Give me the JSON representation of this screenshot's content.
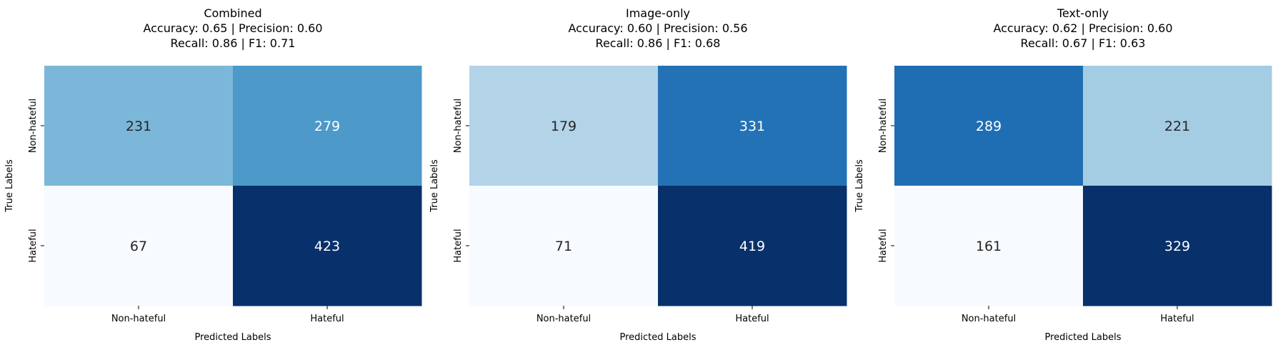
{
  "chart_data": [
    {
      "type": "heatmap",
      "title": "Combined",
      "subtitle_lines": [
        "Accuracy: 0.65 | Precision: 0.60",
        "Recall: 0.86 | F1: 0.71"
      ],
      "xlabel": "Predicted Labels",
      "ylabel": "True Labels",
      "x_categories": [
        "Non-hateful",
        "Hateful"
      ],
      "y_categories": [
        "Non-hateful",
        "Hateful"
      ],
      "values": [
        [
          231,
          279
        ],
        [
          67,
          423
        ]
      ],
      "colormap": "Blues"
    },
    {
      "type": "heatmap",
      "title": "Image-only",
      "subtitle_lines": [
        "Accuracy: 0.60 | Precision: 0.56",
        "Recall: 0.86 | F1: 0.68"
      ],
      "xlabel": "Predicted Labels",
      "ylabel": "True Labels",
      "x_categories": [
        "Non-hateful",
        "Hateful"
      ],
      "y_categories": [
        "Non-hateful",
        "Hateful"
      ],
      "values": [
        [
          179,
          331
        ],
        [
          71,
          419
        ]
      ],
      "colormap": "Blues"
    },
    {
      "type": "heatmap",
      "title": "Text-only",
      "subtitle_lines": [
        "Accuracy: 0.62 | Precision: 0.60",
        "Recall: 0.67 | F1: 0.63"
      ],
      "xlabel": "Predicted Labels",
      "ylabel": "True Labels",
      "x_categories": [
        "Non-hateful",
        "Hateful"
      ],
      "y_categories": [
        "Non-hateful",
        "Hateful"
      ],
      "values": [
        [
          289,
          221
        ],
        [
          161,
          329
        ]
      ],
      "colormap": "Blues"
    }
  ],
  "colors": {
    "blues_stops": [
      "#f7fbff",
      "#deebf7",
      "#c6dbef",
      "#9ecae1",
      "#6baed6",
      "#4292c6",
      "#2171b5",
      "#08519c",
      "#08306b"
    ],
    "text_dark": "#262626",
    "text_light": "#ffffff"
  }
}
